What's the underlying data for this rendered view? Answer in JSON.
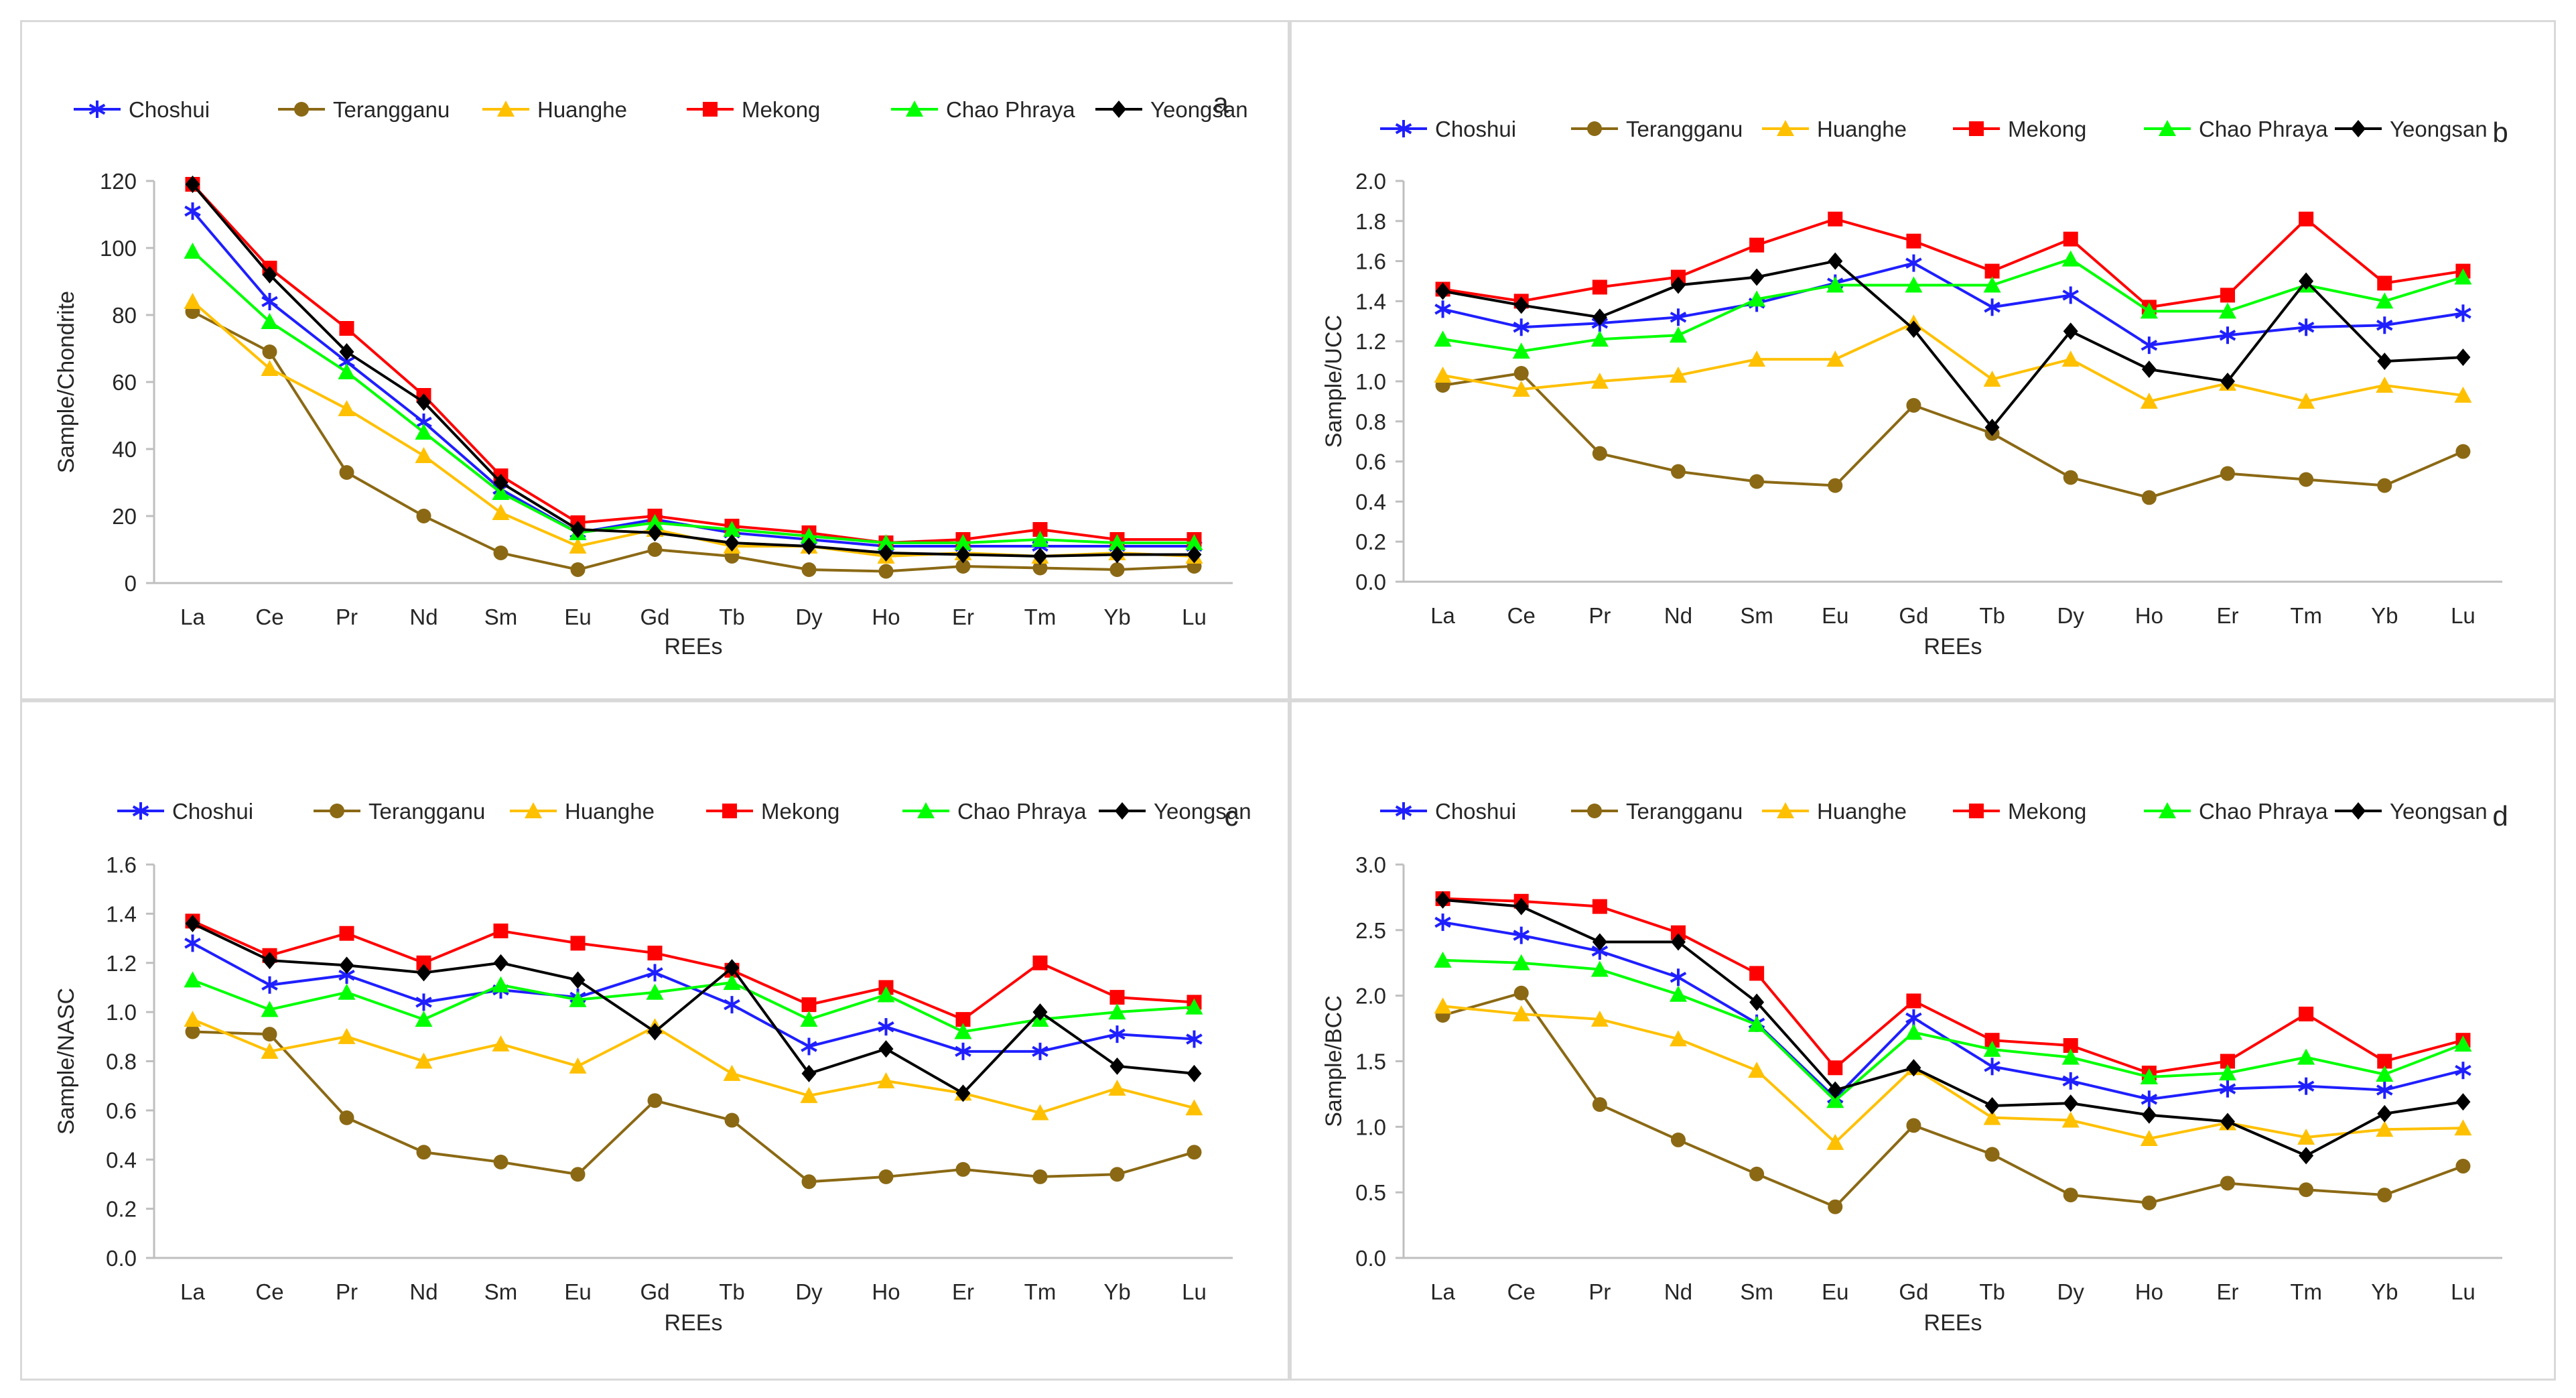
{
  "figure": {
    "element_order": [
      "La",
      "Ce",
      "Pr",
      "Nd",
      "Sm",
      "Eu",
      "Gd",
      "Tb",
      "Dy",
      "Ho",
      "Er",
      "Tm",
      "Yb",
      "Lu"
    ],
    "series_styles": [
      {
        "name": "Choshui",
        "color": "#1f1fff",
        "marker": "star",
        "line_color": "#1f1fff"
      },
      {
        "name": "Terangganu",
        "color": "#8b6914",
        "marker": "circle",
        "line_color": "#8b6914"
      },
      {
        "name": "Huanghe",
        "color": "#ffc000",
        "marker": "triangle",
        "line_color": "#ffc000"
      },
      {
        "name": "Mekong",
        "color": "#ff0000",
        "marker": "square",
        "line_color": "#ff0000"
      },
      {
        "name": "Chao Phraya",
        "color": "#00ff00",
        "marker": "triangle",
        "line_color": "#00ff00"
      },
      {
        "name": "Yeongsan",
        "color": "#000000",
        "marker": "diamond",
        "line_color": "#000000"
      }
    ]
  },
  "chart_data": [
    {
      "type": "line",
      "panel_label": "a",
      "title": "",
      "xlabel": "REEs",
      "ylabel": "Sample/Chondrite",
      "ylim": [
        0,
        120
      ],
      "yticks": [
        0,
        20,
        40,
        60,
        80,
        100,
        120
      ],
      "ytick_labels": [
        "0",
        "20",
        "40",
        "60",
        "80",
        "100",
        "120"
      ],
      "categories": [
        "La",
        "Ce",
        "Pr",
        "Nd",
        "Sm",
        "Eu",
        "Gd",
        "Tb",
        "Dy",
        "Ho",
        "Er",
        "Tm",
        "Yb",
        "Lu"
      ],
      "series": [
        {
          "name": "Choshui",
          "values": [
            111,
            84,
            66,
            48,
            28,
            15,
            19,
            15,
            13,
            11,
            11,
            11,
            11,
            11
          ]
        },
        {
          "name": "Terangganu",
          "values": [
            81,
            69,
            33,
            20,
            9,
            4,
            10,
            8,
            4,
            3.5,
            5,
            4.5,
            4,
            5
          ]
        },
        {
          "name": "Huanghe",
          "values": [
            84,
            64,
            52,
            38,
            21,
            11,
            16,
            11,
            11,
            8,
            9,
            8,
            9,
            8
          ]
        },
        {
          "name": "Mekong",
          "values": [
            119,
            94,
            76,
            56,
            32,
            18,
            20,
            17,
            15,
            12,
            13,
            16,
            13,
            13
          ]
        },
        {
          "name": "Chao Phraya",
          "values": [
            99,
            78,
            63,
            45,
            27,
            15,
            18,
            16,
            14,
            12,
            12,
            13,
            12,
            12
          ]
        },
        {
          "name": "Yeongsan",
          "values": [
            119,
            92,
            69,
            54,
            30,
            16,
            15,
            12,
            11,
            9,
            8.5,
            8,
            8.5,
            8.5
          ]
        }
      ]
    },
    {
      "type": "line",
      "panel_label": "b",
      "title": "",
      "xlabel": "REEs",
      "ylabel": "Sample/UCC",
      "ylim": [
        0,
        2
      ],
      "yticks": [
        0,
        0.2,
        0.4,
        0.6,
        0.8,
        1.0,
        1.2,
        1.4,
        1.6,
        1.8,
        2.0
      ],
      "ytick_labels": [
        "0.0",
        "0.2",
        "0.4",
        "0.6",
        "0.8",
        "1.0",
        "1.2",
        "1.4",
        "1.6",
        "1.8",
        "2.0"
      ],
      "categories": [
        "La",
        "Ce",
        "Pr",
        "Nd",
        "Sm",
        "Eu",
        "Gd",
        "Tb",
        "Dy",
        "Ho",
        "Er",
        "Tm",
        "Yb",
        "Lu"
      ],
      "series": [
        {
          "name": "Choshui",
          "values": [
            1.36,
            1.27,
            1.29,
            1.32,
            1.39,
            1.49,
            1.59,
            1.37,
            1.43,
            1.18,
            1.23,
            1.27,
            1.28,
            1.34
          ]
        },
        {
          "name": "Terangganu",
          "values": [
            0.98,
            1.04,
            0.64,
            0.55,
            0.5,
            0.48,
            0.88,
            0.74,
            0.52,
            0.42,
            0.54,
            0.51,
            0.48,
            0.65
          ]
        },
        {
          "name": "Huanghe",
          "values": [
            1.03,
            0.96,
            1.0,
            1.03,
            1.11,
            1.11,
            1.29,
            1.01,
            1.11,
            0.9,
            0.99,
            0.9,
            0.98,
            0.93
          ]
        },
        {
          "name": "Mekong",
          "values": [
            1.46,
            1.4,
            1.47,
            1.52,
            1.68,
            1.81,
            1.7,
            1.55,
            1.71,
            1.37,
            1.43,
            1.81,
            1.49,
            1.55
          ]
        },
        {
          "name": "Chao Phraya",
          "values": [
            1.21,
            1.15,
            1.21,
            1.23,
            1.41,
            1.48,
            1.48,
            1.48,
            1.61,
            1.35,
            1.35,
            1.48,
            1.4,
            1.52
          ]
        },
        {
          "name": "Yeongsan",
          "values": [
            1.45,
            1.38,
            1.32,
            1.48,
            1.52,
            1.6,
            1.26,
            0.77,
            1.25,
            1.06,
            1.0,
            1.5,
            1.1,
            1.12
          ]
        }
      ]
    },
    {
      "type": "line",
      "panel_label": "c",
      "title": "",
      "xlabel": "REEs",
      "ylabel": "Sample/NASC",
      "ylim": [
        0,
        1.6
      ],
      "yticks": [
        0,
        0.2,
        0.4,
        0.6,
        0.8,
        1.0,
        1.2,
        1.4,
        1.6
      ],
      "ytick_labels": [
        "0.0",
        "0.2",
        "0.4",
        "0.6",
        "0.8",
        "1.0",
        "1.2",
        "1.4",
        "1.6"
      ],
      "categories": [
        "La",
        "Ce",
        "Pr",
        "Nd",
        "Sm",
        "Eu",
        "Gd",
        "Tb",
        "Dy",
        "Ho",
        "Er",
        "Tm",
        "Yb",
        "Lu"
      ],
      "series": [
        {
          "name": "Choshui",
          "values": [
            1.28,
            1.11,
            1.15,
            1.04,
            1.09,
            1.06,
            1.16,
            1.03,
            0.86,
            0.94,
            0.84,
            0.84,
            0.91,
            0.89
          ]
        },
        {
          "name": "Terangganu",
          "values": [
            0.92,
            0.91,
            0.57,
            0.43,
            0.39,
            0.34,
            0.64,
            0.56,
            0.31,
            0.33,
            0.36,
            0.33,
            0.34,
            0.43
          ]
        },
        {
          "name": "Huanghe",
          "values": [
            0.97,
            0.84,
            0.9,
            0.8,
            0.87,
            0.78,
            0.94,
            0.75,
            0.66,
            0.72,
            0.67,
            0.59,
            0.69,
            0.61
          ]
        },
        {
          "name": "Mekong",
          "values": [
            1.37,
            1.23,
            1.32,
            1.2,
            1.33,
            1.28,
            1.24,
            1.17,
            1.03,
            1.1,
            0.97,
            1.2,
            1.06,
            1.04
          ]
        },
        {
          "name": "Chao Phraya",
          "values": [
            1.13,
            1.01,
            1.08,
            0.97,
            1.11,
            1.05,
            1.08,
            1.12,
            0.97,
            1.07,
            0.92,
            0.97,
            1.0,
            1.02
          ]
        },
        {
          "name": "Yeongsan",
          "values": [
            1.36,
            1.21,
            1.19,
            1.16,
            1.2,
            1.13,
            0.92,
            1.18,
            0.75,
            0.85,
            0.67,
            1.0,
            0.78,
            0.75
          ]
        }
      ]
    },
    {
      "type": "line",
      "panel_label": "d",
      "title": "",
      "xlabel": "REEs",
      "ylabel": "Sample/BCC",
      "ylim": [
        0,
        3
      ],
      "yticks": [
        0,
        0.5,
        1.0,
        1.5,
        2.0,
        2.5,
        3.0
      ],
      "ytick_labels": [
        "0.0",
        "0.5",
        "1.0",
        "1.5",
        "2.0",
        "2.5",
        "3.0"
      ],
      "categories": [
        "La",
        "Ce",
        "Pr",
        "Nd",
        "Sm",
        "Eu",
        "Gd",
        "Tb",
        "Dy",
        "Ho",
        "Er",
        "Tm",
        "Yb",
        "Lu"
      ],
      "series": [
        {
          "name": "Choshui",
          "values": [
            2.56,
            2.46,
            2.34,
            2.14,
            1.79,
            1.22,
            1.83,
            1.46,
            1.35,
            1.21,
            1.29,
            1.31,
            1.28,
            1.43
          ]
        },
        {
          "name": "Terangganu",
          "values": [
            1.85,
            2.02,
            1.17,
            0.9,
            0.64,
            0.39,
            1.01,
            0.79,
            0.48,
            0.42,
            0.57,
            0.52,
            0.48,
            0.7
          ]
        },
        {
          "name": "Huanghe",
          "values": [
            1.92,
            1.86,
            1.82,
            1.67,
            1.43,
            0.88,
            1.45,
            1.07,
            1.05,
            0.91,
            1.03,
            0.92,
            0.98,
            0.99
          ]
        },
        {
          "name": "Mekong",
          "values": [
            2.74,
            2.72,
            2.68,
            2.48,
            2.17,
            1.45,
            1.96,
            1.66,
            1.62,
            1.41,
            1.5,
            1.86,
            1.5,
            1.66
          ]
        },
        {
          "name": "Chao Phraya",
          "values": [
            2.27,
            2.25,
            2.2,
            2.01,
            1.78,
            1.2,
            1.72,
            1.59,
            1.53,
            1.38,
            1.41,
            1.53,
            1.4,
            1.63
          ]
        },
        {
          "name": "Yeongsan",
          "values": [
            2.73,
            2.68,
            2.41,
            2.41,
            1.95,
            1.28,
            1.45,
            1.16,
            1.18,
            1.09,
            1.04,
            0.78,
            1.1,
            1.19
          ]
        }
      ]
    }
  ]
}
